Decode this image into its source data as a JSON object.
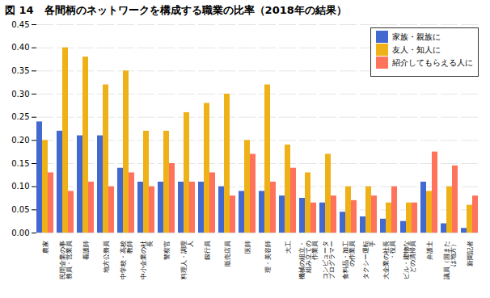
{
  "chart_data": {
    "type": "bar",
    "title": "図 14　各間柄のネットワークを構成する職業の比率（2018年の結果）",
    "categories": [
      "農家",
      "民間企業の事\n務員・営業員",
      "看護師",
      "地方公務員",
      "中学校・高校\n教師",
      "中小企業の社\n長",
      "警察官",
      "料理人・調理\n人",
      "銀行員",
      "販売店員",
      "医師",
      "理・美容師",
      "大工",
      "機械の組立・\n組み立ての\n作業員",
      "コンピュータ\nプログラマー",
      "食料品・加工\nの作業員",
      "タクシー運転\n手",
      "大企業の社長\n・役員",
      "ビル・建物な\nどの清掃員",
      "弁護士",
      "議員（国また\nは地方）",
      "新聞記者"
    ],
    "series": [
      {
        "name": "家族・親族に",
        "values": [
          0.24,
          0.22,
          0.21,
          0.21,
          0.14,
          0.11,
          0.11,
          0.11,
          0.11,
          0.1,
          0.09,
          0.09,
          0.08,
          0.075,
          0.065,
          0.045,
          0.035,
          0.03,
          0.025,
          0.11,
          0.02,
          0.01
        ]
      },
      {
        "name": "友人・知人に",
        "values": [
          0.2,
          0.4,
          0.38,
          0.32,
          0.35,
          0.22,
          0.22,
          0.26,
          0.28,
          0.3,
          0.2,
          0.32,
          0.19,
          0.13,
          0.17,
          0.1,
          0.1,
          0.065,
          0.065,
          0.09,
          0.1,
          0.06
        ]
      },
      {
        "name": "紹介してもらえる人に",
        "values": [
          0.13,
          0.09,
          0.11,
          0.1,
          0.13,
          0.1,
          0.15,
          0.11,
          0.13,
          0.08,
          0.17,
          0.11,
          0.14,
          0.065,
          0.08,
          0.07,
          0.08,
          0.1,
          0.065,
          0.175,
          0.145,
          0.08
        ]
      }
    ],
    "ylim": [
      0,
      0.45
    ],
    "yticks": [
      {
        "value": 0,
        "label": "0.00"
      },
      0.05,
      {
        "value": 0.1,
        "label": "0.10"
      },
      0.15,
      {
        "value": 0.2,
        "label": "0.20"
      },
      0.25,
      {
        "value": 0.3,
        "label": "0.30"
      },
      0.35,
      {
        "value": 0.4,
        "label": "0.40"
      },
      0.45
    ],
    "grid": true,
    "legend": "upper right"
  }
}
